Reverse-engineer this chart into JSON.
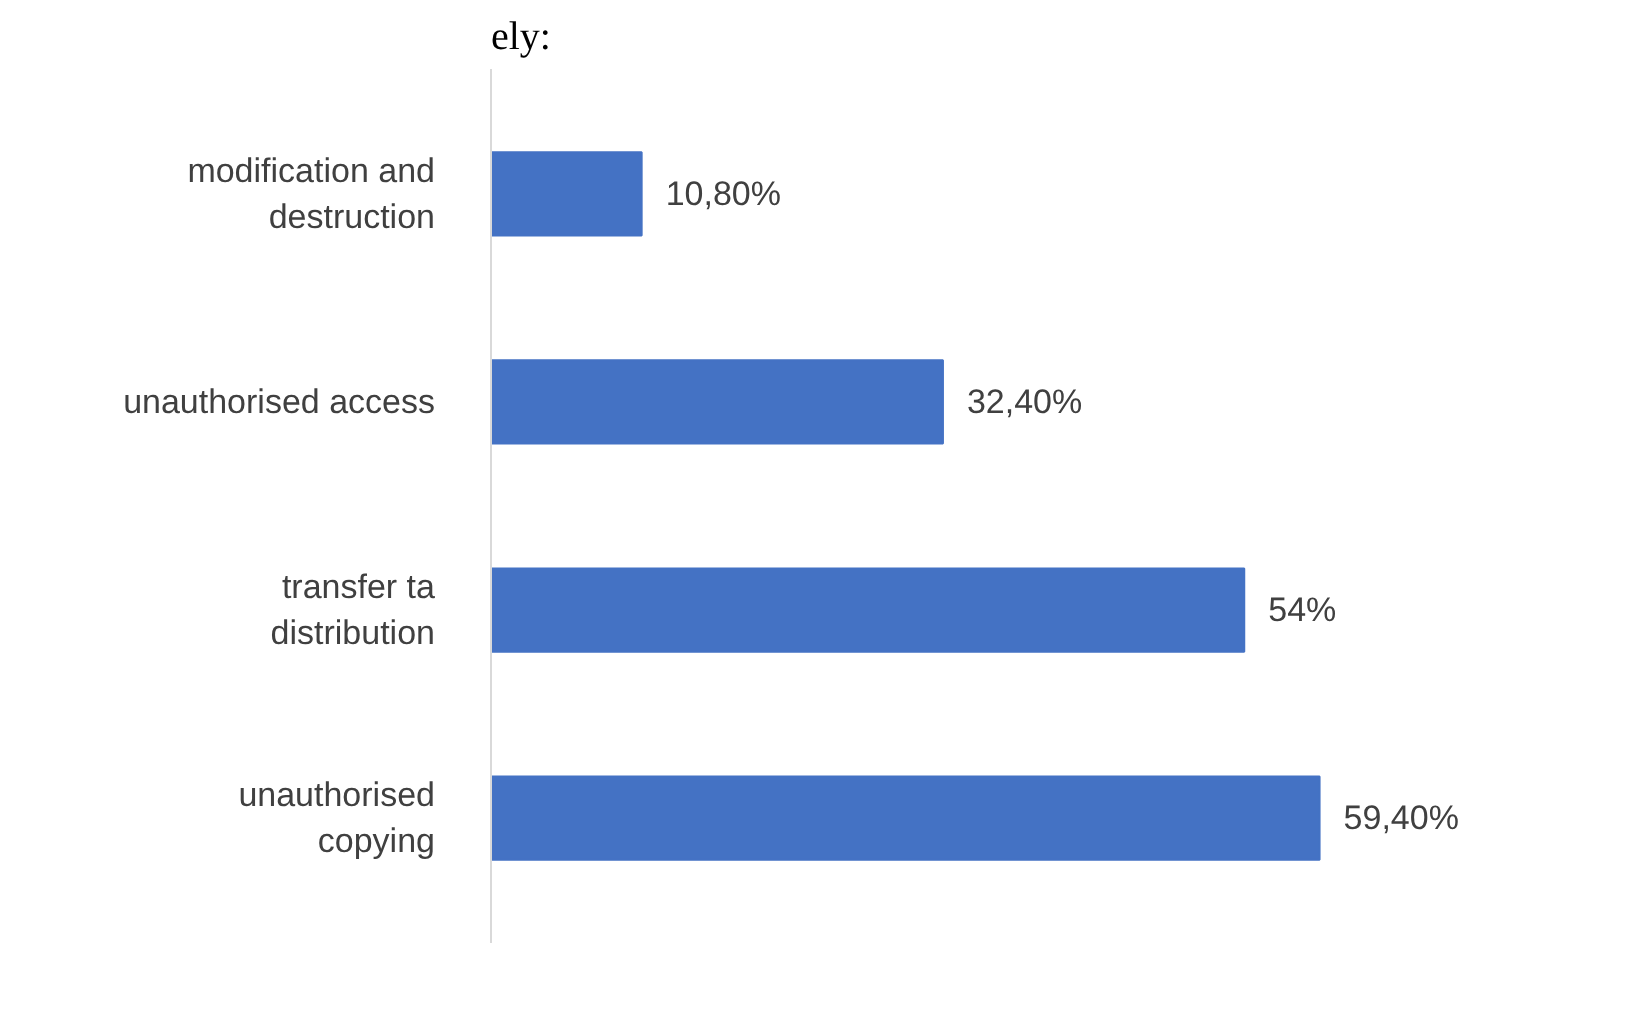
{
  "chart_data": {
    "type": "bar",
    "orientation": "horizontal",
    "color": "#4472c4",
    "categories": [
      "modification and destruction",
      "unauthorised access",
      "transfer ta distribution",
      "unauthorised copying"
    ],
    "values": [
      10.8,
      32.4,
      54,
      59.4
    ],
    "value_labels": [
      "10,80%",
      "32,40%",
      "54%",
      "59,40%"
    ],
    "annotations": [
      "ely:"
    ],
    "grid": false
  }
}
